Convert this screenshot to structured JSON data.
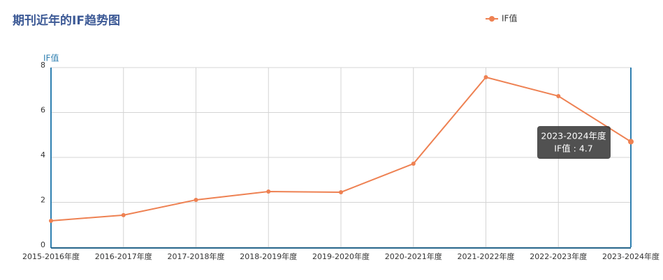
{
  "chart_data": {
    "type": "line",
    "title": "期刊近年的IF趋势图",
    "y_label": "IF值",
    "categories": [
      "2015-2016年度",
      "2016-2017年度",
      "2017-2018年度",
      "2018-2019年度",
      "2019-2020年度",
      "2020-2021年度",
      "2021-2022年度",
      "2022-2023年度",
      "2023-2024年度"
    ],
    "series": [
      {
        "name": "IF值",
        "color": "#ee8152",
        "values": [
          1.18,
          1.43,
          2.11,
          2.48,
          2.45,
          3.72,
          7.57,
          6.73,
          4.7
        ]
      }
    ],
    "ylim": [
      0,
      8
    ],
    "yticks": [
      0,
      2,
      4,
      6,
      8
    ],
    "grid": true,
    "tooltip": {
      "title": "2023-2024年度",
      "text": "IF值 : 4.7"
    }
  }
}
